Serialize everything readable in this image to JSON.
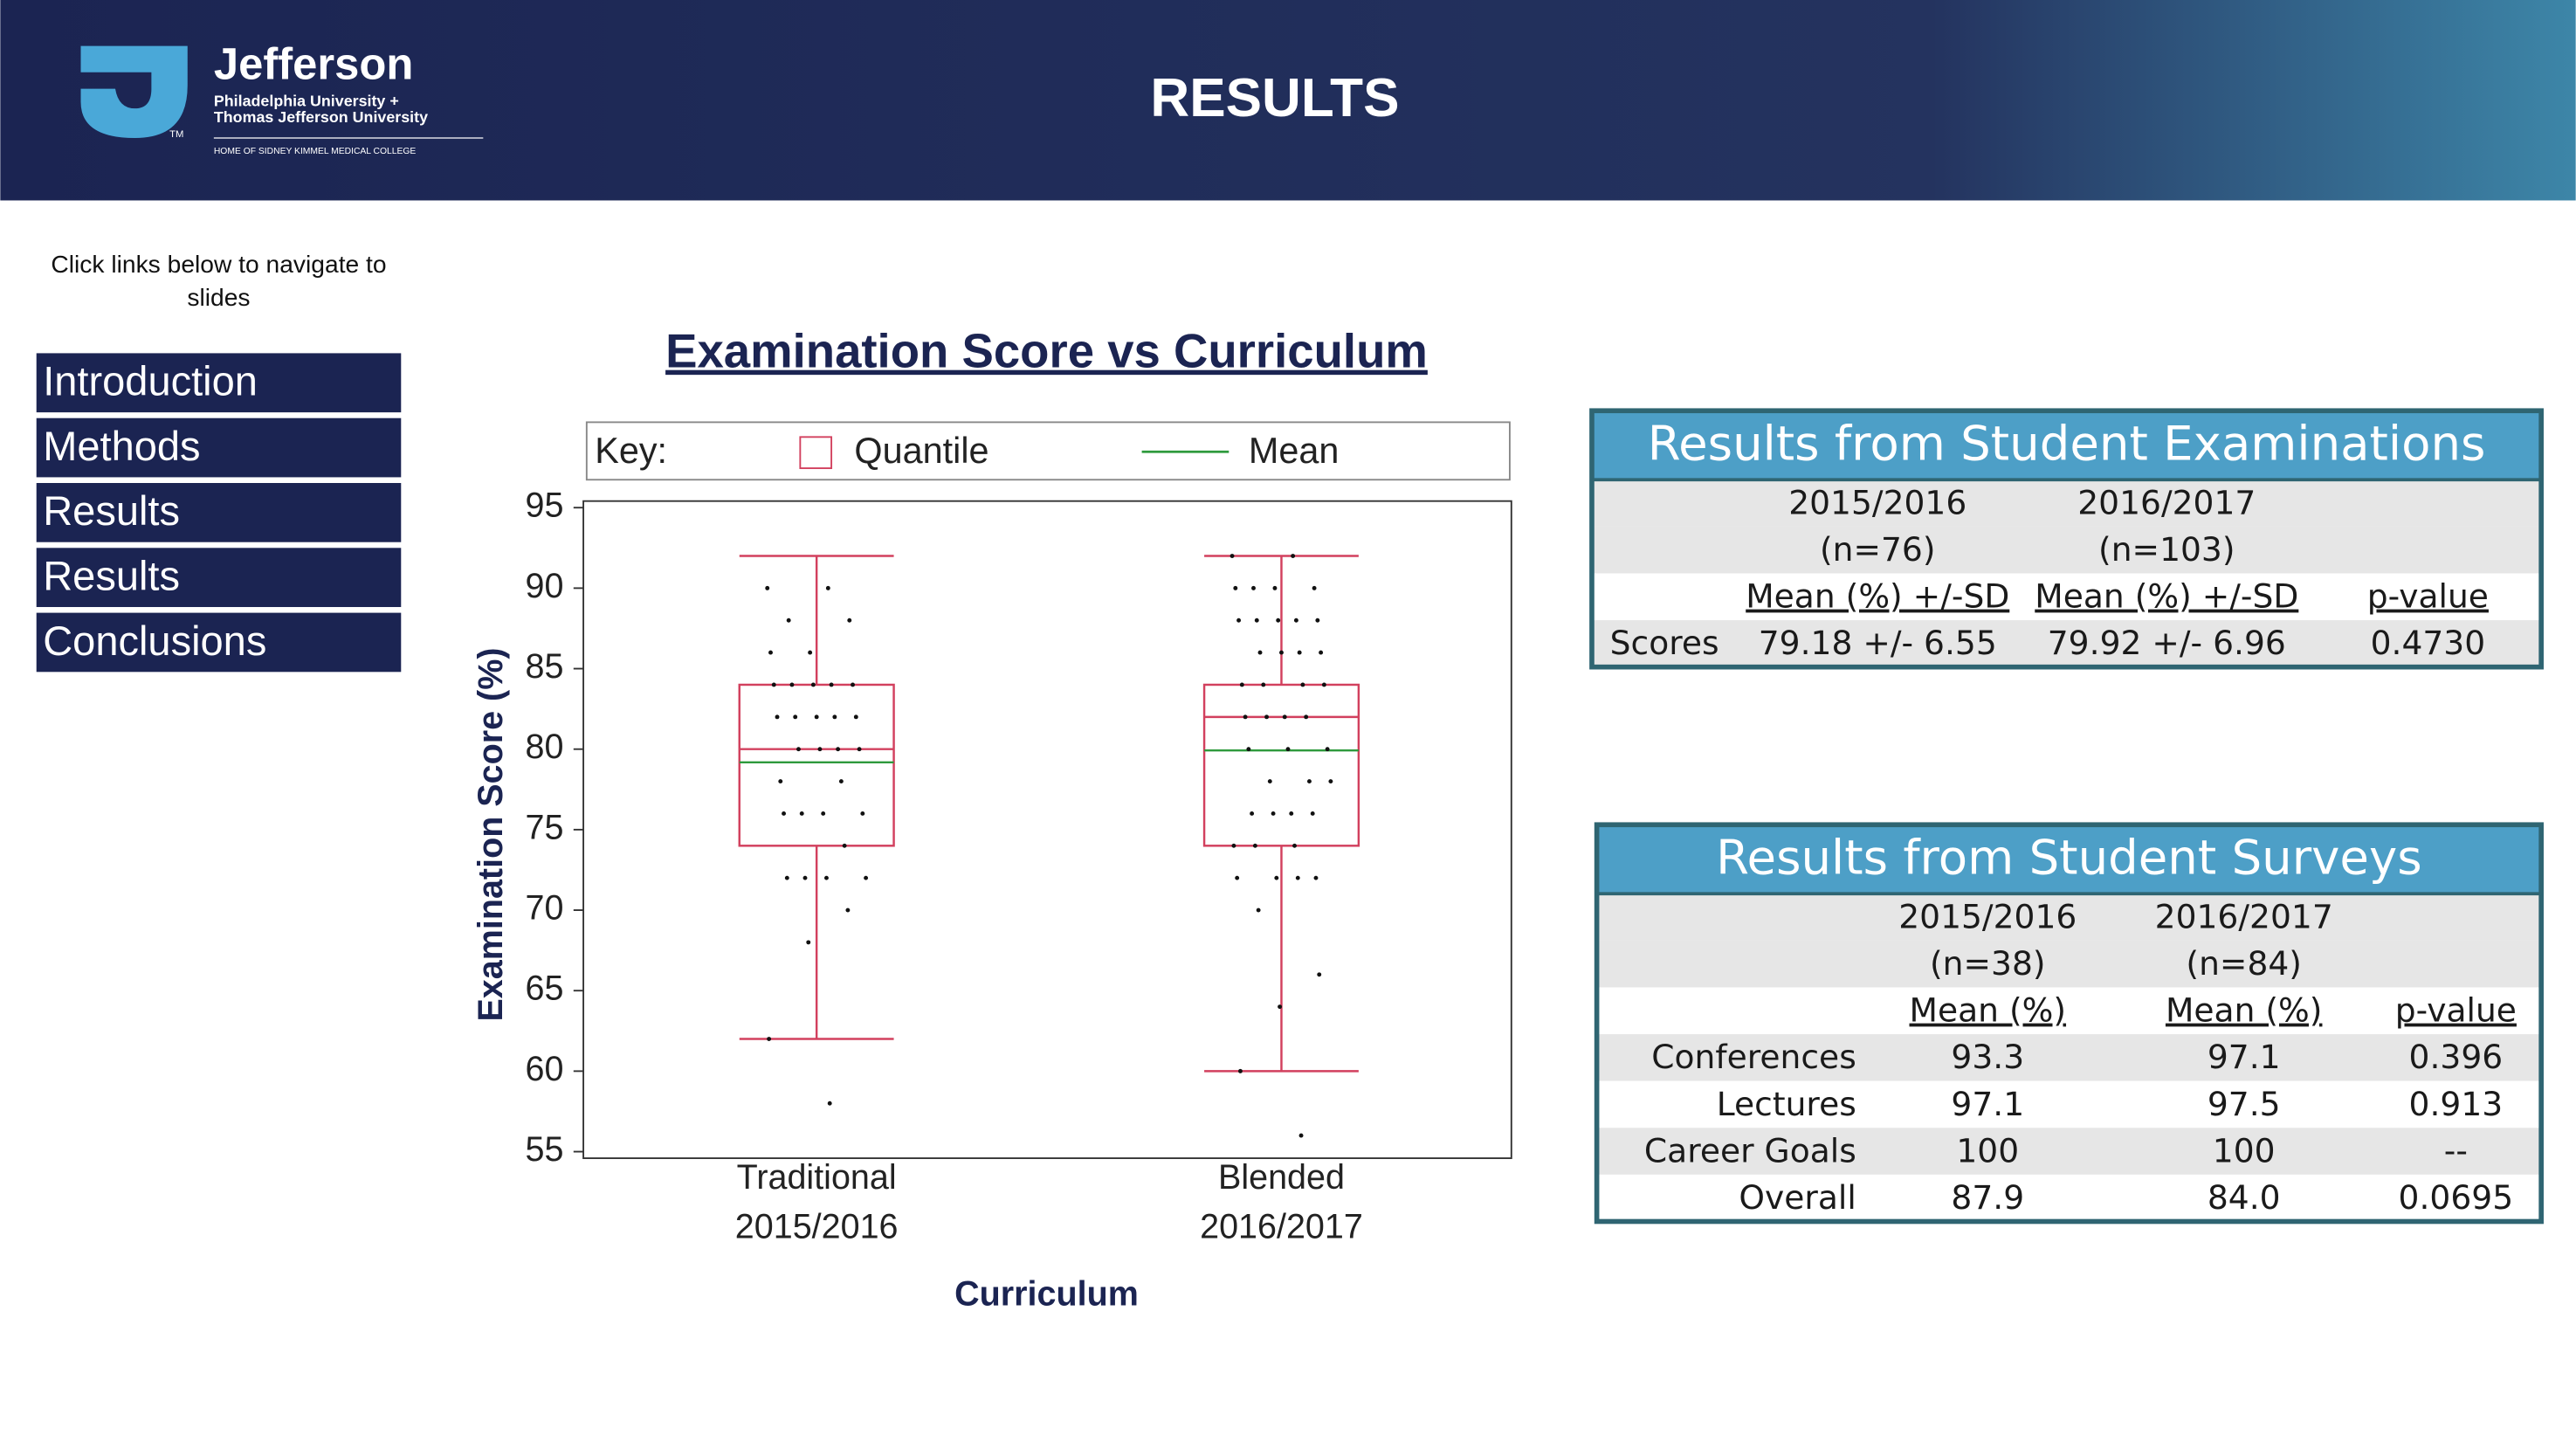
{
  "header": {
    "logo": {
      "name": "Jefferson",
      "line1": "Philadelphia University +",
      "line2": "Thomas Jefferson University",
      "tagline": "HOME OF SIDNEY KIMMEL MEDICAL COLLEGE",
      "mark": "TM"
    },
    "title": "RESULTS"
  },
  "nav": {
    "note": "Click links below to navigate to slides",
    "links": [
      "Introduction",
      "Methods",
      "Results",
      "Results",
      "Conclusions"
    ]
  },
  "chart_data": {
    "type": "box",
    "title": "Examination Score vs Curriculum",
    "xlabel": "Curriculum",
    "ylabel": "Examination Score (%)",
    "categories": [
      [
        "Traditional",
        "2015/2016"
      ],
      [
        "Blended",
        "2016/2017"
      ]
    ],
    "legend": {
      "title": "Key:",
      "entries": [
        {
          "name": "Quantile",
          "color": "#d2405e"
        },
        {
          "name": "Mean",
          "color": "#2e9a3c"
        }
      ]
    },
    "point_color": "#111111",
    "boxes": [
      {
        "whislo": 62,
        "q1": 74,
        "med": 80,
        "q3": 84,
        "whishi": 92,
        "mean": 79.18,
        "points": [
          90,
          90,
          88,
          88,
          86,
          86,
          84,
          84,
          84,
          84,
          84,
          82,
          82,
          82,
          82,
          82,
          80,
          80,
          80,
          80,
          78,
          78,
          76,
          76,
          76,
          76,
          74,
          72,
          72,
          72,
          72,
          70,
          68,
          62,
          58
        ]
      },
      {
        "whislo": 60,
        "q1": 74,
        "med": 82,
        "q3": 84,
        "whishi": 92,
        "mean": 79.92,
        "points": [
          92,
          92,
          90,
          90,
          90,
          90,
          88,
          88,
          88,
          88,
          88,
          86,
          86,
          86,
          86,
          84,
          84,
          84,
          84,
          82,
          82,
          82,
          82,
          80,
          80,
          80,
          78,
          78,
          78,
          76,
          76,
          76,
          76,
          74,
          74,
          74,
          72,
          72,
          72,
          72,
          70,
          66,
          64,
          60,
          56
        ]
      }
    ],
    "ylim": [
      55,
      95
    ],
    "yticks": [
      55,
      60,
      65,
      70,
      75,
      80,
      85,
      90,
      95
    ]
  },
  "exam_table": {
    "title": "Results from Student Examinations",
    "years": [
      "2015/2016",
      "2016/2017"
    ],
    "n": [
      "(n=76)",
      "(n=103)"
    ],
    "measures": [
      "Mean (%) +/-SD",
      "Mean (%) +/-SD",
      "p-value"
    ],
    "rows": [
      [
        "Scores",
        "79.18 +/- 6.55",
        "79.92 +/- 6.96",
        "0.4730"
      ]
    ]
  },
  "survey_table": {
    "title": "Results from Student Surveys",
    "years": [
      "2015/2016",
      "2016/2017"
    ],
    "n": [
      "(n=38)",
      "(n=84)"
    ],
    "measures": [
      "Mean (%)",
      "Mean (%)",
      "p-value"
    ],
    "rows": [
      [
        "Conferences",
        "93.3",
        "97.1",
        "0.396"
      ],
      [
        "Lectures",
        "97.1",
        "97.5",
        "0.913"
      ],
      [
        "Career Goals",
        "100",
        "100",
        "--"
      ],
      [
        "Overall",
        "87.9",
        "84.0",
        "0.0695"
      ]
    ]
  }
}
